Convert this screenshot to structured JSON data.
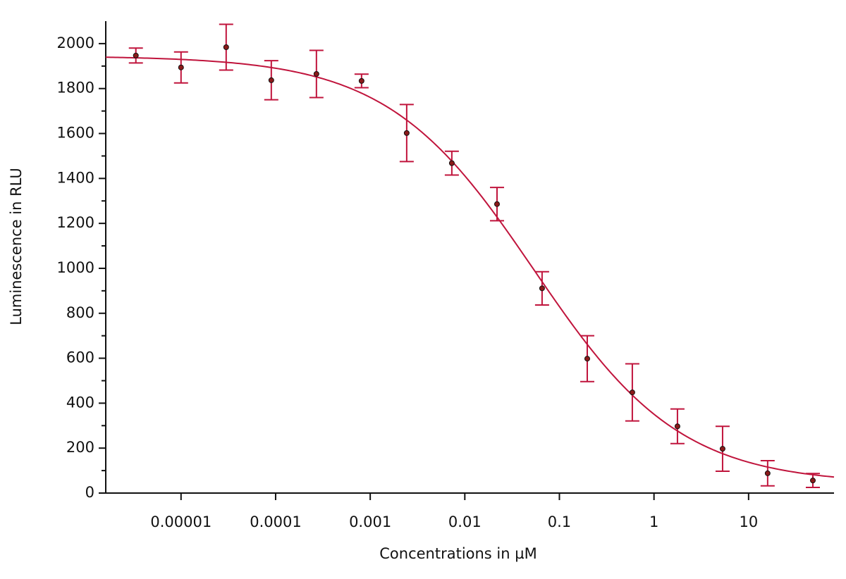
{
  "chart_data": {
    "type": "dose-response",
    "x_label": "Concentrations in µM",
    "y_label": "Luminescence in RLU",
    "x_scale": "log",
    "xlim": [
      1.6e-06,
      80
    ],
    "xticks": [
      {
        "value": 1e-05,
        "label": "0.00001"
      },
      0.0001,
      0.001,
      0.01,
      0.1,
      1,
      10
    ],
    "ylim": [
      0,
      2100
    ],
    "yticks": [
      0,
      200,
      400,
      600,
      800,
      1000,
      1200,
      1400,
      1600,
      1800,
      2000
    ],
    "yminorticks": [
      100,
      300,
      500,
      700,
      900,
      1100,
      1300,
      1500,
      1700,
      1900
    ],
    "color": "#c0143c",
    "point_color": "#8b1a1a",
    "x": [
      3.33e-06,
      1e-05,
      3e-05,
      9e-05,
      0.00027,
      0.00081,
      0.00243,
      0.00729,
      0.0219,
      0.0656,
      0.197,
      0.59,
      1.77,
      5.31,
      15.9,
      47.8
    ],
    "values": [
      1947,
      1894,
      1984,
      1837,
      1865,
      1834,
      1602,
      1468,
      1286,
      911,
      598,
      448,
      297,
      197,
      88,
      56
    ],
    "errors": [
      33,
      69,
      102,
      87,
      105,
      30,
      127,
      53,
      74,
      74,
      102,
      127,
      77,
      100,
      56,
      31
    ],
    "fit": {
      "top": 1945,
      "bottom": 40,
      "ec50": 0.054,
      "hill": 0.56
    }
  }
}
